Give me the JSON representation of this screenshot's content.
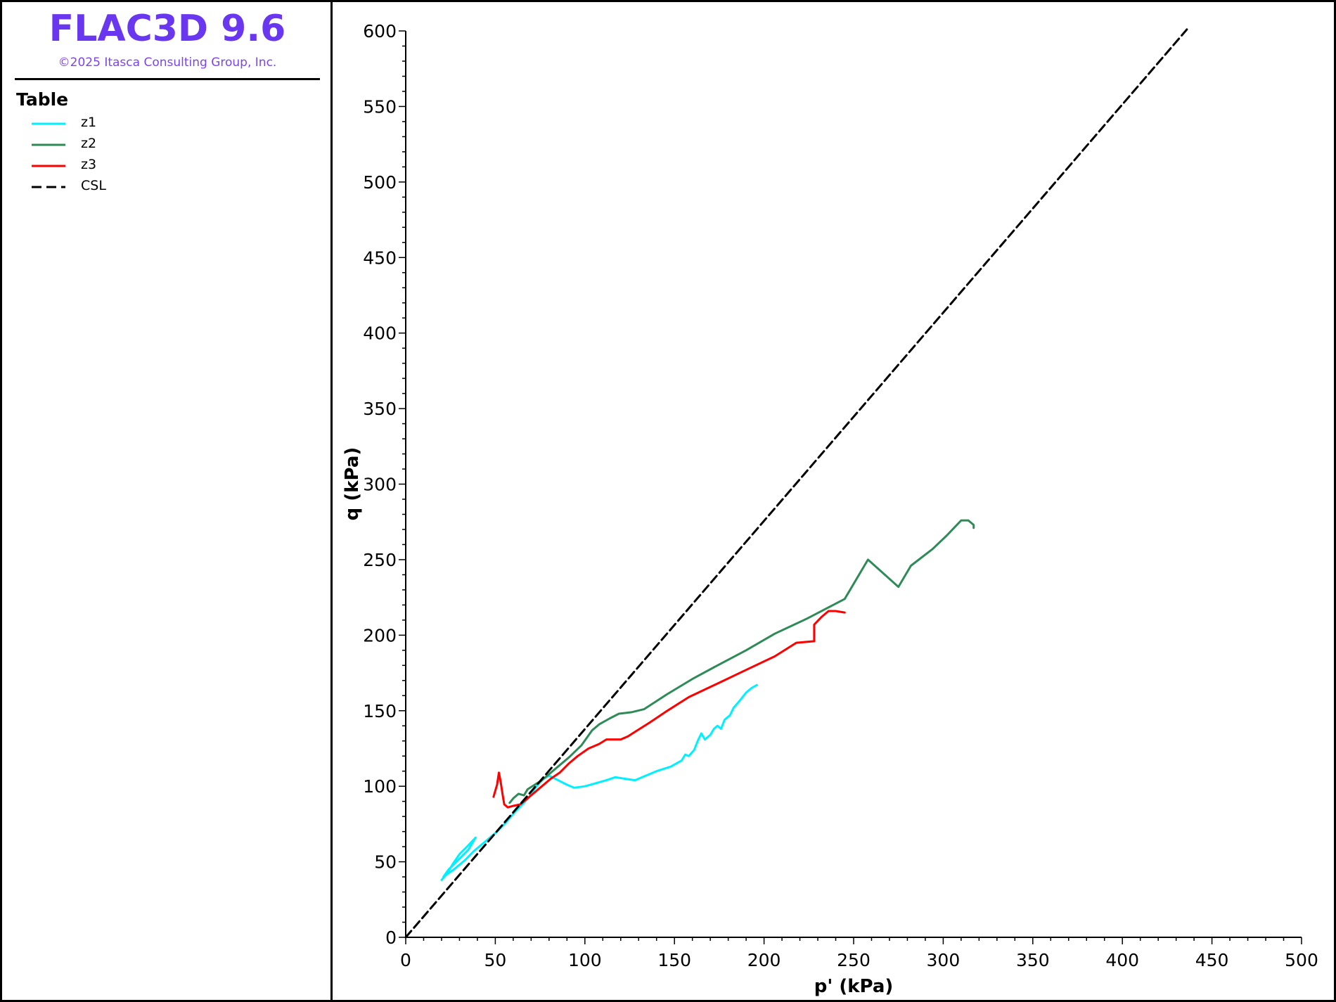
{
  "header": {
    "app_title": "FLAC3D 9.6",
    "copyright": "©2025 Itasca Consulting Group, Inc."
  },
  "legend": {
    "heading": "Table",
    "items": [
      {
        "label": "z1",
        "color": "#00f0ff",
        "style": "solid"
      },
      {
        "label": "z2",
        "color": "#2e8b57",
        "style": "solid"
      },
      {
        "label": "z3",
        "color": "#ff0000",
        "style": "solid"
      },
      {
        "label": "CSL",
        "color": "#000000",
        "style": "dashed"
      }
    ]
  },
  "chart_data": {
    "type": "line",
    "xlabel": "p' (kPa)",
    "ylabel": "q (kPa)",
    "xlim": [
      0,
      500
    ],
    "ylim": [
      0,
      600
    ],
    "xticks": [
      0,
      50,
      100,
      150,
      200,
      250,
      300,
      350,
      400,
      450,
      500
    ],
    "yticks": [
      0,
      50,
      100,
      150,
      200,
      250,
      300,
      350,
      400,
      450,
      500,
      550,
      600
    ],
    "grid": false,
    "legend_position": "left-panel",
    "series": [
      {
        "name": "z1",
        "color": "#00f0ff",
        "style": "solid",
        "points": [
          [
            20,
            38
          ],
          [
            23,
            42
          ],
          [
            26,
            48
          ],
          [
            30,
            55
          ],
          [
            35,
            61
          ],
          [
            39,
            66
          ],
          [
            35,
            58
          ],
          [
            30,
            52
          ],
          [
            24,
            45
          ],
          [
            21,
            40
          ],
          [
            27,
            45
          ],
          [
            33,
            51
          ],
          [
            38,
            57
          ],
          [
            44,
            63
          ],
          [
            50,
            69
          ],
          [
            56,
            76
          ],
          [
            61,
            83
          ],
          [
            66,
            89
          ],
          [
            69,
            93
          ],
          [
            73,
            100
          ],
          [
            77,
            105
          ],
          [
            80,
            107
          ],
          [
            85,
            104
          ],
          [
            90,
            101
          ],
          [
            94,
            99
          ],
          [
            100,
            100
          ],
          [
            106,
            102
          ],
          [
            112,
            104
          ],
          [
            117,
            106
          ],
          [
            122,
            105
          ],
          [
            128,
            104
          ],
          [
            134,
            107
          ],
          [
            140,
            110
          ],
          [
            148,
            113
          ],
          [
            154,
            117
          ],
          [
            156,
            121
          ],
          [
            158,
            120
          ],
          [
            161,
            124
          ],
          [
            163,
            130
          ],
          [
            165,
            135
          ],
          [
            167,
            131
          ],
          [
            170,
            134
          ],
          [
            172,
            138
          ],
          [
            174,
            140
          ],
          [
            176,
            138
          ],
          [
            178,
            144
          ],
          [
            181,
            147
          ],
          [
            183,
            152
          ],
          [
            186,
            156
          ],
          [
            188,
            159
          ],
          [
            190,
            162
          ],
          [
            193,
            165
          ],
          [
            196,
            167
          ]
        ]
      },
      {
        "name": "z2",
        "color": "#2e8b57",
        "style": "solid",
        "points": [
          [
            58,
            89
          ],
          [
            60,
            92
          ],
          [
            63,
            95
          ],
          [
            66,
            94
          ],
          [
            68,
            98
          ],
          [
            72,
            101
          ],
          [
            76,
            104
          ],
          [
            80,
            108
          ],
          [
            85,
            113
          ],
          [
            91,
            119
          ],
          [
            98,
            127
          ],
          [
            104,
            137
          ],
          [
            108,
            141
          ],
          [
            114,
            145
          ],
          [
            119,
            148
          ],
          [
            126,
            149
          ],
          [
            133,
            151
          ],
          [
            146,
            161
          ],
          [
            160,
            171
          ],
          [
            174,
            180
          ],
          [
            190,
            190
          ],
          [
            206,
            201
          ],
          [
            224,
            211
          ],
          [
            245,
            224
          ],
          [
            258,
            250
          ],
          [
            275,
            232
          ],
          [
            282,
            246
          ],
          [
            294,
            257
          ],
          [
            302,
            266
          ],
          [
            306,
            271
          ],
          [
            310,
            276
          ],
          [
            314,
            276
          ],
          [
            317,
            273
          ],
          [
            317,
            271
          ]
        ]
      },
      {
        "name": "z3",
        "color": "#ff0000",
        "style": "solid",
        "points": [
          [
            49,
            93
          ],
          [
            50,
            97
          ],
          [
            51,
            101
          ],
          [
            52,
            109
          ],
          [
            53,
            103
          ],
          [
            54,
            95
          ],
          [
            55,
            88
          ],
          [
            57,
            86
          ],
          [
            60,
            87
          ],
          [
            64,
            88
          ],
          [
            68,
            92
          ],
          [
            72,
            96
          ],
          [
            76,
            100
          ],
          [
            81,
            105
          ],
          [
            86,
            109
          ],
          [
            91,
            115
          ],
          [
            96,
            120
          ],
          [
            102,
            125
          ],
          [
            108,
            128
          ],
          [
            112,
            131
          ],
          [
            116,
            131
          ],
          [
            120,
            131
          ],
          [
            124,
            133
          ],
          [
            128,
            136
          ],
          [
            136,
            142
          ],
          [
            146,
            150
          ],
          [
            158,
            159
          ],
          [
            174,
            168
          ],
          [
            190,
            177
          ],
          [
            206,
            186
          ],
          [
            218,
            195
          ],
          [
            228,
            196
          ],
          [
            228,
            207
          ],
          [
            232,
            212
          ],
          [
            236,
            216
          ],
          [
            240,
            216
          ],
          [
            245,
            215
          ]
        ]
      },
      {
        "name": "CSL",
        "color": "#000000",
        "style": "dashed",
        "points": [
          [
            0,
            0
          ],
          [
            436,
            601
          ]
        ]
      }
    ]
  }
}
